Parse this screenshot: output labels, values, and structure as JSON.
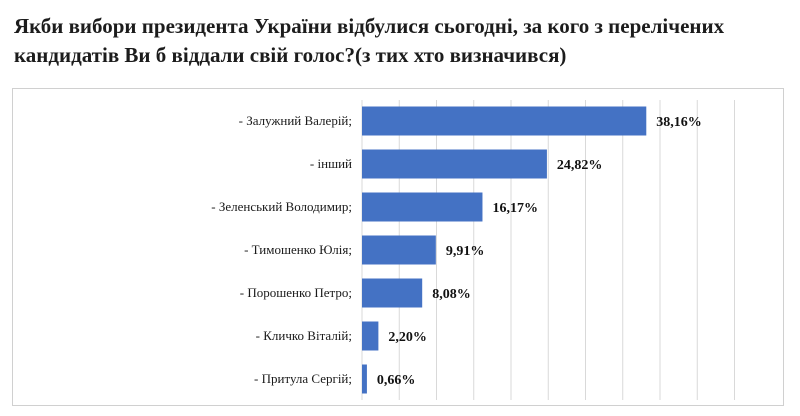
{
  "title": "Якби вибори президента України відбулися сьогодні, за кого з перелічених кандидатів Ви б віддали свій голос?(з тих хто визначився)",
  "colors": {
    "bar": "#4472c4",
    "grid": "#d9d9d9"
  },
  "chart_data": {
    "type": "bar",
    "orientation": "horizontal",
    "categories": [
      "- Залужний Валерій;",
      "- інший",
      "- Зеленський Володимир;",
      "- Тимошенко Юлія;",
      "- Порошенко Петро;",
      "- Кличко Віталій;",
      "- Притула Сергій;"
    ],
    "values": [
      38.16,
      24.82,
      16.17,
      9.91,
      8.08,
      2.2,
      0.66
    ],
    "value_labels": [
      "38,16%",
      "24,82%",
      "16,17%",
      "9,91%",
      "8,08%",
      "2,20%",
      "0,66%"
    ],
    "xlim": [
      0,
      50
    ],
    "grid": true,
    "legend": "none"
  }
}
